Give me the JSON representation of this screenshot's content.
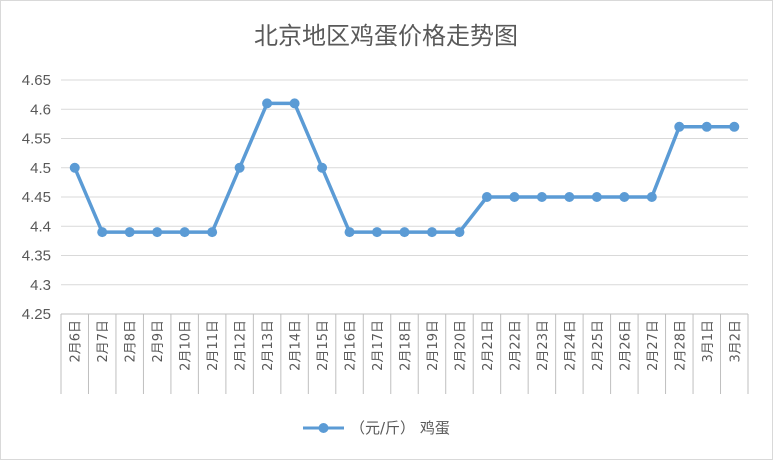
{
  "chart_data": {
    "type": "line",
    "title": "北京地区鸡蛋价格走势图",
    "categories": [
      "2月6日",
      "2月7日",
      "2月8日",
      "2月9日",
      "2月10日",
      "2月11日",
      "2月12日",
      "2月13日",
      "2月14日",
      "2月15日",
      "2月16日",
      "2月17日",
      "2月18日",
      "2月19日",
      "2月20日",
      "2月21日",
      "2月22日",
      "2月23日",
      "2月24日",
      "2月25日",
      "2月26日",
      "2月27日",
      "2月28日",
      "3月1日",
      "3月2日"
    ],
    "series": [
      {
        "name": "（元/斤） 鸡蛋",
        "values": [
          4.5,
          4.39,
          4.39,
          4.39,
          4.39,
          4.39,
          4.5,
          4.61,
          4.61,
          4.5,
          4.39,
          4.39,
          4.39,
          4.39,
          4.39,
          4.45,
          4.45,
          4.45,
          4.45,
          4.45,
          4.45,
          4.45,
          4.57,
          4.57,
          4.57
        ]
      }
    ],
    "yticks": [
      "4.25",
      "4.3",
      "4.35",
      "4.4",
      "4.45",
      "4.5",
      "4.55",
      "4.6",
      "4.65"
    ],
    "ylim": [
      4.25,
      4.65
    ],
    "grid": true,
    "legend": "bottom",
    "colors": {
      "series": "#5b9bd5",
      "grid": "#d9d9d9",
      "text": "#595959"
    }
  }
}
